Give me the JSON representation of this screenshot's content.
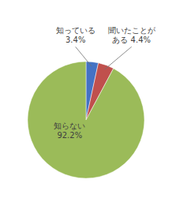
{
  "chart_data": {
    "type": "pie",
    "values": [
      3.4,
      4.4,
      92.2
    ],
    "value_labels": [
      "知っている\n3.4%",
      "聞いたことが\nある 4.4%",
      "知らない\n92.2%"
    ],
    "colors": [
      "#4472C4",
      "#C0504D",
      "#9BBB59"
    ],
    "data_labels": true
  }
}
